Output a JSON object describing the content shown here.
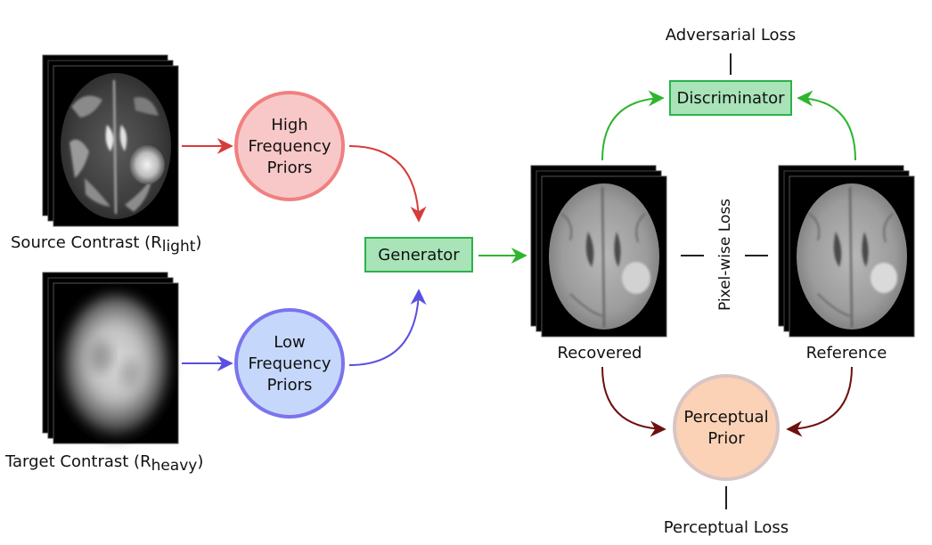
{
  "diagram": {
    "source_label_main": "Source Contrast (R",
    "source_label_sub": "light",
    "source_label_end": ")",
    "target_label_main": "Target Contrast (R",
    "target_label_sub": "heavy",
    "target_label_end": ")",
    "high_freq_line1": "High",
    "high_freq_line2": "Frequency",
    "high_freq_line3": "Priors",
    "low_freq_line1": "Low",
    "low_freq_line2": "Frequency",
    "low_freq_line3": "Priors",
    "generator": "Generator",
    "discriminator": "Discriminator",
    "adversarial_loss": "Adversarial Loss",
    "pixel_wise_loss": "Pixel-wise Loss",
    "recovered": "Recovered",
    "reference": "Reference",
    "perceptual_line1": "Perceptual",
    "perceptual_line2": "Prior",
    "perceptual_loss": "Perceptual Loss"
  },
  "colors": {
    "high_freq_fill": "#f8c8c8",
    "high_freq_stroke": "#f08080",
    "low_freq_fill": "#c5d8fb",
    "low_freq_stroke": "#7b73ee",
    "box_fill": "#a9e3b8",
    "box_stroke": "#2bb24c",
    "perceptual_fill": "#fbd2b6",
    "perceptual_stroke": "#d8c5c5",
    "red_arrow": "#d93a3a",
    "blue_arrow": "#5a4fe0",
    "green_arrow": "#2eb52e",
    "brown_arrow": "#6e1010"
  }
}
